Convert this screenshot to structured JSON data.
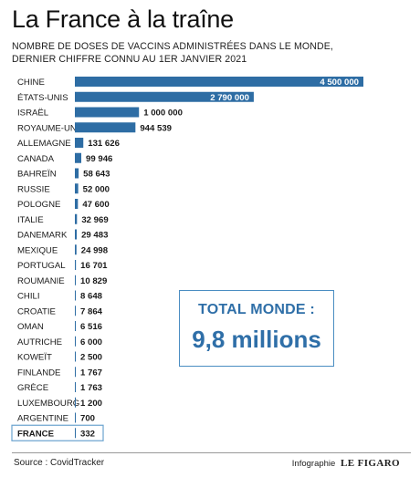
{
  "header": {
    "title": "La France à la traîne",
    "subtitle_line1": "NOMBRE DE DOSES DE VACCINS ADMINISTRÉES DANS LE MONDE,",
    "subtitle_line2": "DERNIER CHIFFRE CONNU AU 1ER JANVIER 2021"
  },
  "chart_data": {
    "type": "bar",
    "orientation": "horizontal",
    "categories": [
      "CHINE",
      "ÉTATS-UNIS",
      "ISRAËL",
      "ROYAUME-UNI",
      "ALLEMAGNE",
      "CANADA",
      "BAHREÏN",
      "RUSSIE",
      "POLOGNE",
      "ITALIE",
      "DANEMARK",
      "MEXIQUE",
      "PORTUGAL",
      "ROUMANIE",
      "CHILI",
      "CROATIE",
      "OMAN",
      "AUTRICHE",
      "KOWEÏT",
      "FINLANDE",
      "GRÈCE",
      "LUXEMBOURG",
      "ARGENTINE",
      "FRANCE"
    ],
    "values": [
      4500000,
      2790000,
      1000000,
      944539,
      131626,
      99946,
      58643,
      52000,
      47600,
      32969,
      29483,
      24998,
      16701,
      10829,
      8648,
      7864,
      6516,
      6000,
      2500,
      1767,
      1763,
      1200,
      700,
      332
    ],
    "value_labels": [
      "4 500 000",
      "2 790 000",
      "1 000 000",
      "944 539",
      "131 626",
      "99 946",
      "58 643",
      "52 000",
      "47 600",
      "32 969",
      "29 483",
      "24 998",
      "16 701",
      "10 829",
      "8 648",
      "7 864",
      "6 516",
      "6 000",
      "2 500",
      "1 767",
      "1 763",
      "1 200",
      "700",
      "332"
    ],
    "highlight": "FRANCE",
    "bar_color": "#2e6da4",
    "highlight_border_color": "#6aa3cf",
    "xlim": [
      0,
      4500000
    ],
    "axis_visible": false
  },
  "total": {
    "label": "TOTAL MONDE :",
    "value": "9,8 millions",
    "color": "#2f6fa8"
  },
  "footer": {
    "source": "Source : CovidTracker",
    "credit_prefix": "Infographie",
    "brand": "LE FIGARO"
  }
}
